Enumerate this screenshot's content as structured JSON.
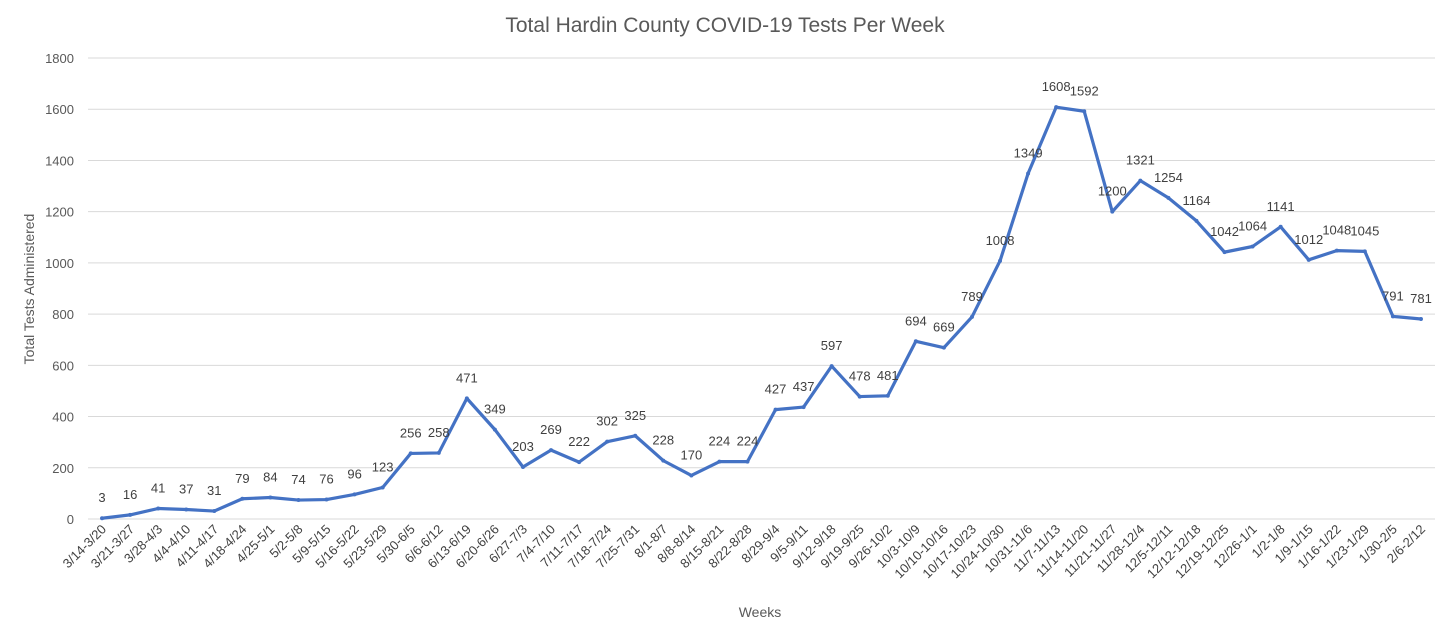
{
  "chart_data": {
    "type": "line",
    "title": "Total Hardin County COVID-19 Tests Per Week",
    "xlabel": "Weeks",
    "ylabel": "Total Tests Administered",
    "ylim": [
      0,
      1800
    ],
    "yticks": [
      0,
      200,
      400,
      600,
      800,
      1000,
      1200,
      1400,
      1600,
      1800
    ],
    "grid": true,
    "line_color": "#4472C4",
    "categories": [
      "3/14-3/20",
      "3/21-3/27",
      "3/28-4/3",
      "4/4-4/10",
      "4/11-4/17",
      "4/18-4/24",
      "4/25-5/1",
      "5/2-5/8",
      "5/9-5/15",
      "5/16-5/22",
      "5/23-5/29",
      "5/30-6/5",
      "6/6-6/12",
      "6/13-6/19",
      "6/20-6/26",
      "6/27-7/3",
      "7/4-7/10",
      "7/11-7/17",
      "7/18-7/24",
      "7/25-7/31",
      "8/1-8/7",
      "8/8-8/14",
      "8/15-8/21",
      "8/22-8/28",
      "8/29-9/4",
      "9/5-9/11",
      "9/12-9/18",
      "9/19-9/25",
      "9/26-10/2",
      "10/3-10/9",
      "10/10-10/16",
      "10/17-10/23",
      "10/24-10/30",
      "10/31-11/6",
      "11/7-11/13",
      "11/14-11/20",
      "11/21-11/27",
      "11/28-12/4",
      "12/5-12/11",
      "12/12-12/18",
      "12/19-12/25",
      "12/26-1/1",
      "1/2-1/8",
      "1/9-1/15",
      "1/16-1/22",
      "1/23-1/29",
      "1/30-2/5",
      "2/6-2/12"
    ],
    "series": [
      {
        "name": "Total Tests",
        "values": [
          3,
          16,
          41,
          37,
          31,
          79,
          84,
          74,
          76,
          96,
          123,
          256,
          258,
          471,
          349,
          203,
          269,
          222,
          302,
          325,
          228,
          170,
          224,
          224,
          427,
          437,
          597,
          478,
          481,
          694,
          669,
          789,
          1008,
          1349,
          1608,
          1592,
          1200,
          1321,
          1254,
          1164,
          1042,
          1064,
          1141,
          1012,
          1048,
          1045,
          791,
          781
        ]
      }
    ]
  }
}
